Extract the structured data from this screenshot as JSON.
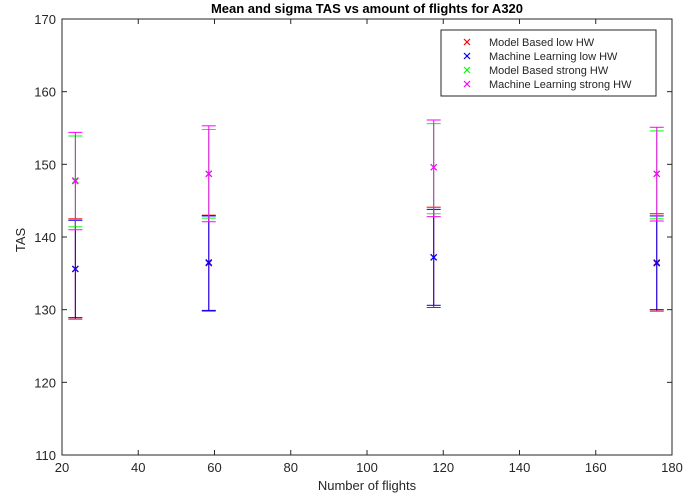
{
  "chart_data": {
    "type": "scatter",
    "title": "Mean and sigma TAS vs amount of flights for A320",
    "xlabel": "Number of flights",
    "ylabel": "TAS",
    "xlim": [
      20,
      180
    ],
    "ylim": [
      110,
      170
    ],
    "xticks": [
      20,
      40,
      60,
      80,
      100,
      120,
      140,
      160,
      180
    ],
    "yticks": [
      110,
      120,
      130,
      140,
      150,
      160,
      170
    ],
    "grid": false,
    "legend_position": "top-right",
    "marker": "x",
    "series": [
      {
        "name": "Model Based low HW",
        "color": "#ff0000",
        "x": [
          23.5,
          58.5,
          117.5,
          176
        ],
        "mean": [
          135.6,
          136.4,
          137.2,
          136.5
        ],
        "lower": [
          128.7,
          129.8,
          130.3,
          129.8
        ],
        "upper": [
          142.5,
          143.0,
          144.1,
          143.2
        ]
      },
      {
        "name": "Machine Learning low HW",
        "color": "#0000ff",
        "x": [
          23.5,
          58.5,
          117.5,
          176
        ],
        "mean": [
          135.6,
          136.5,
          137.2,
          136.4
        ],
        "lower": [
          128.9,
          129.9,
          130.6,
          130.0
        ],
        "upper": [
          142.3,
          142.9,
          143.8,
          142.9
        ]
      },
      {
        "name": "Model Based strong HW",
        "color": "#00ff00",
        "x": [
          23.5,
          58.5,
          117.5,
          176
        ],
        "mean": [
          147.8,
          148.7,
          149.6,
          148.7
        ],
        "lower": [
          141.4,
          142.6,
          143.2,
          142.5
        ],
        "upper": [
          153.9,
          154.8,
          155.6,
          154.6
        ]
      },
      {
        "name": "Machine Learning strong HW",
        "color": "#ff00ff",
        "x": [
          23.5,
          58.5,
          117.5,
          176
        ],
        "mean": [
          147.7,
          148.7,
          149.6,
          148.7
        ],
        "lower": [
          141.0,
          142.1,
          142.8,
          142.2
        ],
        "upper": [
          154.4,
          155.3,
          156.1,
          155.1
        ]
      }
    ]
  }
}
